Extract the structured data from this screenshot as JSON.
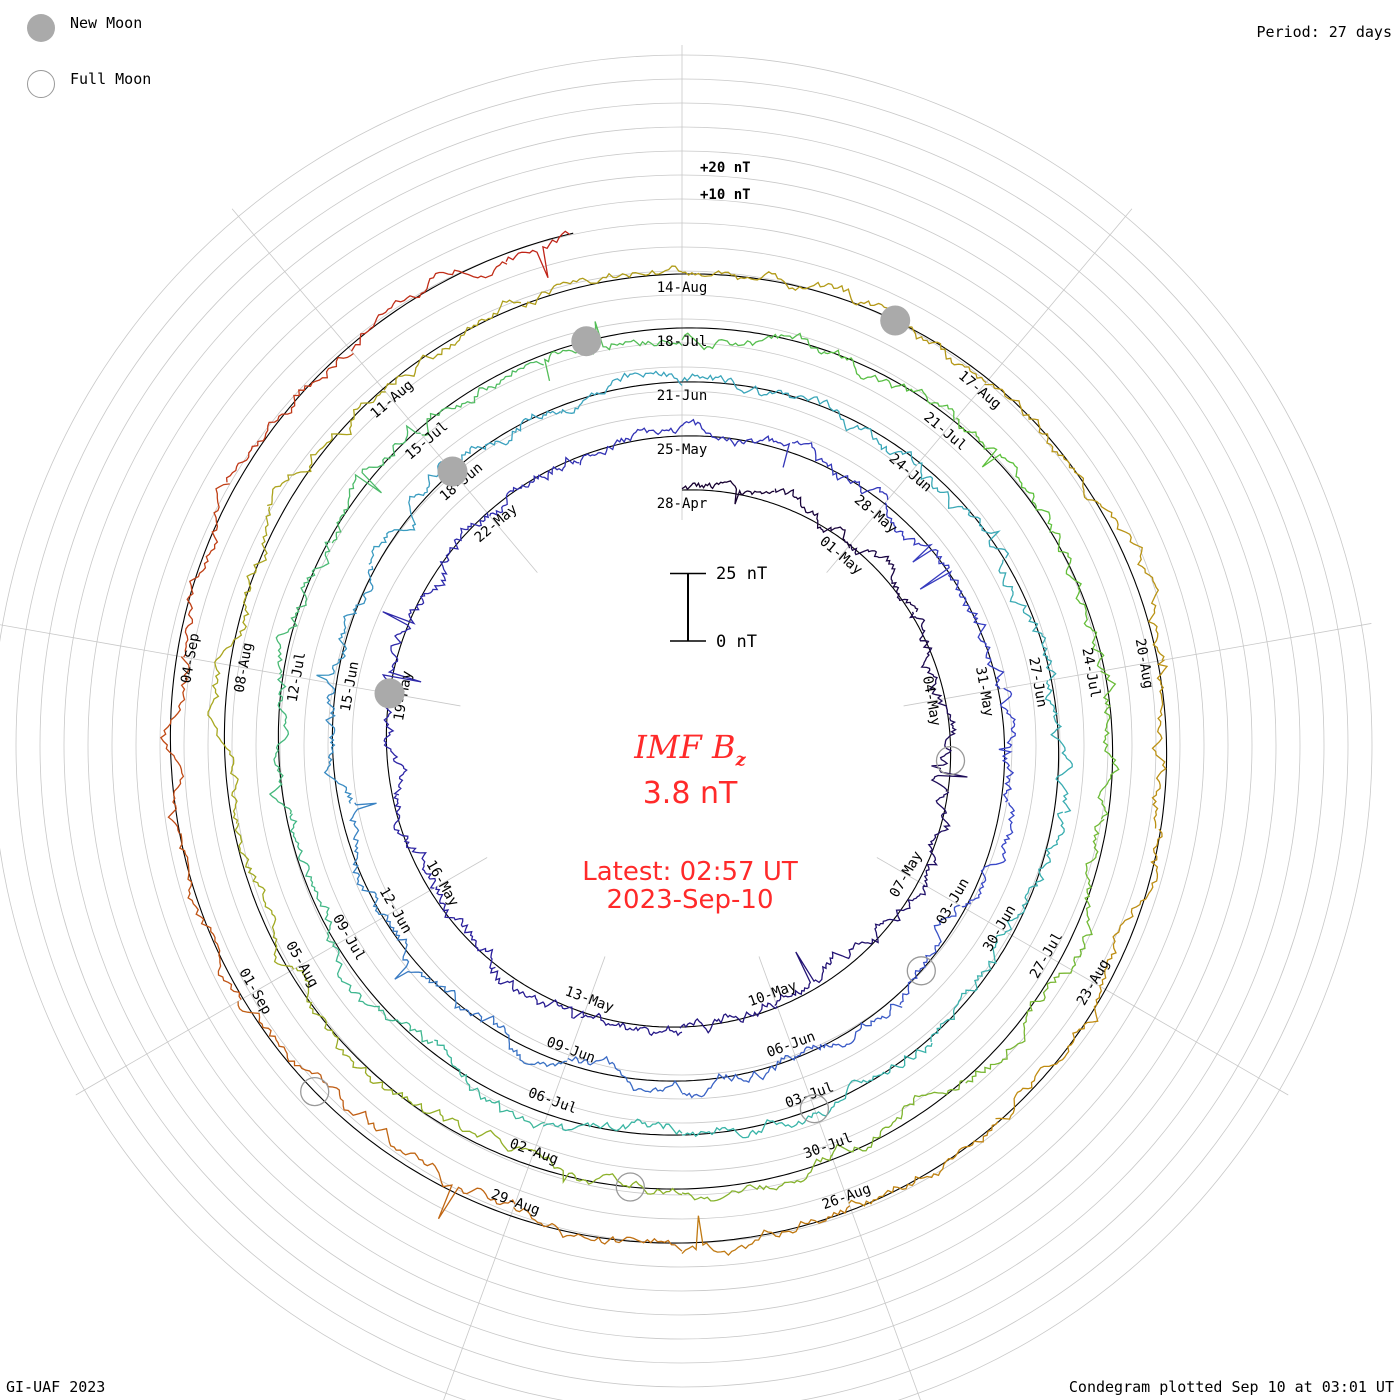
{
  "header": {
    "legend": {
      "new_moon_label": "New Moon",
      "full_moon_label": "Full Moon"
    },
    "period": "Period: 27 days"
  },
  "readout": {
    "parameter": "IMF B",
    "subscript": "z",
    "value": "3.8 nT",
    "latest_time": "Latest: 02:57 UT",
    "latest_date": "2023-Sep-10"
  },
  "footer": {
    "credit": "GI-UAF 2023",
    "plotted": "Condegram plotted Sep 10 at 03:01 UT"
  },
  "colors": {
    "accent": "#ff2a2a",
    "grid": "#c8c8c8",
    "rotations": [
      "#160030",
      "#2a1f9e",
      "#3a44c8",
      "#3aa0c0",
      "#39b5a6",
      "#5cc03c",
      "#a8a820",
      "#c08a10",
      "#c02018"
    ]
  },
  "chart_data": {
    "type": "line",
    "title": "IMF Bz condegram",
    "period_days": 27,
    "scale_bar": {
      "top_label": "25 nT",
      "bottom_label": "0 nT",
      "nT": 25
    },
    "ring_labels": [
      "+20 nT",
      "+10 nT"
    ],
    "rotations": [
      {
        "start": "2023-04-28",
        "dates": [
          "28-Apr",
          "01-May",
          "04-May",
          "07-May",
          "10-May",
          "13-May",
          "16-May",
          "19-May",
          "22-May"
        ]
      },
      {
        "start": "2023-05-25",
        "dates": [
          "25-May",
          "28-May",
          "31-May",
          "03-Jun",
          "06-Jun",
          "09-Jun",
          "12-Jun",
          "15-Jun",
          "18-Jun"
        ]
      },
      {
        "start": "2023-06-21",
        "dates": [
          "21-Jun",
          "24-Jun",
          "27-Jun",
          "30-Jun",
          "03-Jul",
          "06-Jul",
          "09-Jul",
          "12-Jul",
          "15-Jul"
        ]
      },
      {
        "start": "2023-07-18",
        "dates": [
          "18-Jul",
          "21-Jul",
          "24-Jul",
          "27-Jul",
          "30-Jul",
          "02-Aug",
          "05-Aug",
          "08-Aug",
          "11-Aug"
        ]
      },
      {
        "start": "2023-08-14",
        "dates": [
          "14-Aug",
          "17-Aug",
          "20-Aug",
          "23-Aug",
          "26-Aug",
          "29-Aug",
          "01-Sep",
          "04-Sep"
        ]
      }
    ],
    "events": [
      {
        "type": "new-moon",
        "date": "2023-05-19"
      },
      {
        "type": "new-moon",
        "date": "2023-06-18"
      },
      {
        "type": "new-moon",
        "date": "2023-07-17"
      },
      {
        "type": "new-moon",
        "date": "2023-08-16"
      },
      {
        "type": "full-moon",
        "date": "2023-05-05"
      },
      {
        "type": "full-moon",
        "date": "2023-06-04"
      },
      {
        "type": "full-moon",
        "date": "2023-07-03"
      },
      {
        "type": "full-moon",
        "date": "2023-08-01"
      },
      {
        "type": "full-moon",
        "date": "2023-08-31"
      }
    ],
    "latest_value_nT": 3.8
  }
}
